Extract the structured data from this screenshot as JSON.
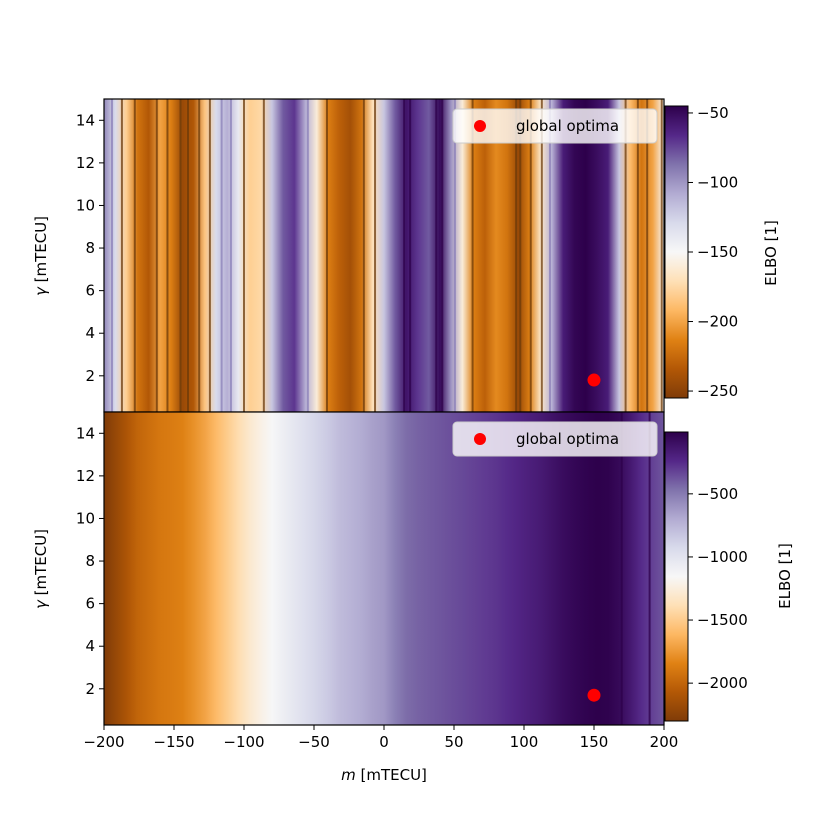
{
  "chart_data": [
    {
      "type": "heatmap",
      "xlabel_var": "m",
      "xlabel_unit": " [mTECU]",
      "ylabel_var": "γ",
      "ylabel_unit": " [mTECU]",
      "xlim": [
        -200,
        200
      ],
      "ylim": [
        0.3,
        15
      ],
      "xticks": [
        -200,
        -150,
        -100,
        -50,
        0,
        50,
        100,
        150,
        200
      ],
      "yticks": [
        2,
        4,
        6,
        8,
        10,
        12,
        14
      ],
      "show_xticklabels": false,
      "colorbar": {
        "label": "ELBO [1]",
        "range": [
          -255,
          -45
        ],
        "ticks": [
          -50,
          -100,
          -150,
          -200,
          -250
        ],
        "tick_labels": [
          "−50",
          "−100",
          "−150",
          "−200",
          "−250"
        ]
      },
      "colormap": [
        "#2d004b",
        "#542788",
        "#8073ac",
        "#b2abd2",
        "#d8daeb",
        "#f7f7f7",
        "#fee0b6",
        "#fdb863",
        "#e08214",
        "#b35806",
        "#7f3b08"
      ],
      "profile_m": [
        -200,
        -192,
        -184,
        -176,
        -168,
        -160,
        -152,
        -144,
        -136,
        -128,
        -120,
        -112,
        -104,
        -96,
        -88,
        -80,
        -72,
        -64,
        -56,
        -48,
        -40,
        -32,
        -24,
        -16,
        -8,
        0,
        8,
        16,
        24,
        32,
        40,
        48,
        56,
        64,
        72,
        80,
        88,
        96,
        104,
        112,
        120,
        128,
        136,
        144,
        152,
        160,
        168,
        176,
        184,
        192,
        200
      ],
      "profile_elbo": [
        -95,
        -130,
        -180,
        -220,
        -235,
        -200,
        -215,
        -245,
        -235,
        -185,
        -130,
        -110,
        -140,
        -180,
        -175,
        -120,
        -80,
        -70,
        -110,
        -160,
        -215,
        -230,
        -240,
        -220,
        -170,
        -120,
        -80,
        -55,
        -70,
        -80,
        -50,
        -100,
        -160,
        -215,
        -230,
        -210,
        -220,
        -245,
        -215,
        -165,
        -110,
        -60,
        -48,
        -45,
        -52,
        -60,
        -120,
        -190,
        -220,
        -200,
        -150
      ],
      "contour_levels": [
        -60,
        -120,
        -160,
        -210,
        -240
      ],
      "legend": {
        "label": "global optima",
        "marker_color": "#ff0000",
        "position": "upper right"
      },
      "optimum": {
        "m": 150,
        "gamma": 1.8
      }
    },
    {
      "type": "heatmap",
      "xlabel_var": "m",
      "xlabel_unit": " [mTECU]",
      "ylabel_var": "γ",
      "ylabel_unit": " [mTECU]",
      "xlim": [
        -200,
        200
      ],
      "ylim": [
        0.3,
        15
      ],
      "xticks": [
        -200,
        -150,
        -100,
        -50,
        0,
        50,
        100,
        150,
        200
      ],
      "xtick_labels": [
        "−200",
        "−150",
        "−100",
        "−50",
        "0",
        "50",
        "100",
        "150",
        "200"
      ],
      "yticks": [
        2,
        4,
        6,
        8,
        10,
        12,
        14
      ],
      "show_xticklabels": true,
      "colorbar": {
        "label": "ELBO [1]",
        "range": [
          -2300,
          -10
        ],
        "ticks": [
          -500,
          -1000,
          -1500,
          -2000
        ],
        "tick_labels": [
          "−500",
          "−1000",
          "−1500",
          "−2000"
        ]
      },
      "colormap": [
        "#2d004b",
        "#542788",
        "#8073ac",
        "#b2abd2",
        "#d8daeb",
        "#f7f7f7",
        "#fee0b6",
        "#fdb863",
        "#e08214",
        "#b35806",
        "#7f3b08"
      ],
      "profile_m": [
        -200,
        -192,
        -184,
        -176,
        -168,
        -160,
        -152,
        -144,
        -136,
        -128,
        -120,
        -112,
        -104,
        -96,
        -88,
        -80,
        -72,
        -64,
        -56,
        -48,
        -40,
        -32,
        -24,
        -16,
        -8,
        0,
        8,
        16,
        24,
        32,
        40,
        48,
        56,
        64,
        72,
        80,
        88,
        96,
        104,
        112,
        120,
        128,
        136,
        144,
        152,
        160,
        168,
        176,
        184,
        192,
        200
      ],
      "profile_elbo": [
        -2300,
        -2200,
        -2100,
        -2000,
        -1950,
        -1900,
        -1880,
        -1850,
        -1780,
        -1700,
        -1600,
        -1500,
        -1400,
        -1300,
        -1220,
        -1150,
        -1080,
        -1020,
        -960,
        -900,
        -850,
        -780,
        -740,
        -700,
        -650,
        -620,
        -520,
        -450,
        -420,
        -400,
        -380,
        -360,
        -340,
        -320,
        -300,
        -280,
        -250,
        -220,
        -190,
        -160,
        -120,
        -80,
        -50,
        -30,
        -15,
        -20,
        -60,
        -150,
        -250,
        -320,
        -380
      ],
      "contour_levels": [
        -2000,
        -1150,
        -650,
        -300,
        -80
      ],
      "legend": {
        "label": "global optima",
        "marker_color": "#ff0000",
        "position": "upper right"
      },
      "optimum": {
        "m": 150,
        "gamma": 1.7
      }
    }
  ]
}
